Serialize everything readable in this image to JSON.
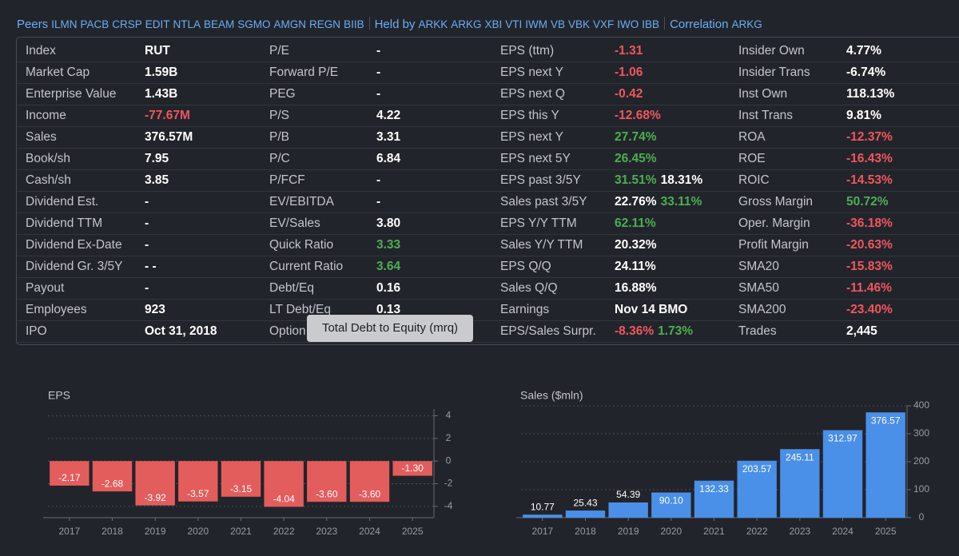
{
  "peers": {
    "label": "Peers",
    "items": [
      "ILMN",
      "PACB",
      "CRSP",
      "EDIT",
      "NTLA",
      "BEAM",
      "SGMO",
      "AMGN",
      "REGN",
      "BIIB"
    ]
  },
  "held_by": {
    "label": "Held by",
    "items": [
      "ARKK",
      "ARKG",
      "XBI",
      "VTI",
      "IWM",
      "VB",
      "VBK",
      "VXF",
      "IWO",
      "IBB"
    ]
  },
  "correlation": {
    "label": "Correlation",
    "items": [
      "ARKG"
    ]
  },
  "table": {
    "rows": [
      [
        [
          "Index",
          [
            {
              "text": "RUT",
              "color": "#ffffff"
            }
          ]
        ],
        [
          "P/E",
          [
            {
              "text": "-",
              "color": "#ffffff"
            }
          ]
        ],
        [
          "EPS (ttm)",
          [
            {
              "text": "-1.31",
              "color": "#f0575c"
            }
          ]
        ],
        [
          "Insider Own",
          [
            {
              "text": "4.77%",
              "color": "#ffffff"
            }
          ]
        ]
      ],
      [
        [
          "Market Cap",
          [
            {
              "text": "1.59B",
              "color": "#ffffff"
            }
          ]
        ],
        [
          "Forward P/E",
          [
            {
              "text": "-",
              "color": "#ffffff"
            }
          ]
        ],
        [
          "EPS next Y",
          [
            {
              "text": "-1.06",
              "color": "#f0575c"
            }
          ]
        ],
        [
          "Insider Trans",
          [
            {
              "text": "-6.74%",
              "color": "#ffffff"
            }
          ]
        ]
      ],
      [
        [
          "Enterprise Value",
          [
            {
              "text": "1.43B",
              "color": "#ffffff"
            }
          ]
        ],
        [
          "PEG",
          [
            {
              "text": "-",
              "color": "#ffffff"
            }
          ]
        ],
        [
          "EPS next Q",
          [
            {
              "text": "-0.42",
              "color": "#f0575c"
            }
          ]
        ],
        [
          "Inst Own",
          [
            {
              "text": "118.13%",
              "color": "#ffffff"
            }
          ]
        ]
      ],
      [
        [
          "Income",
          [
            {
              "text": "-77.67M",
              "color": "#f0575c"
            }
          ]
        ],
        [
          "P/S",
          [
            {
              "text": "4.22",
              "color": "#ffffff"
            }
          ]
        ],
        [
          "EPS this Y",
          [
            {
              "text": "-12.68%",
              "color": "#f0575c"
            }
          ]
        ],
        [
          "Inst Trans",
          [
            {
              "text": "9.81%",
              "color": "#ffffff"
            }
          ]
        ]
      ],
      [
        [
          "Sales",
          [
            {
              "text": "376.57M",
              "color": "#ffffff"
            }
          ]
        ],
        [
          "P/B",
          [
            {
              "text": "3.31",
              "color": "#ffffff"
            }
          ]
        ],
        [
          "EPS next Y",
          [
            {
              "text": "27.74%",
              "color": "#4caf50"
            }
          ]
        ],
        [
          "ROA",
          [
            {
              "text": "-12.37%",
              "color": "#f0575c"
            }
          ]
        ]
      ],
      [
        [
          "Book/sh",
          [
            {
              "text": "7.95",
              "color": "#ffffff"
            }
          ]
        ],
        [
          "P/C",
          [
            {
              "text": "6.84",
              "color": "#ffffff"
            }
          ]
        ],
        [
          "EPS next 5Y",
          [
            {
              "text": "26.45%",
              "color": "#4caf50"
            }
          ]
        ],
        [
          "ROE",
          [
            {
              "text": "-16.43%",
              "color": "#f0575c"
            }
          ]
        ]
      ],
      [
        [
          "Cash/sh",
          [
            {
              "text": "3.85",
              "color": "#ffffff"
            }
          ]
        ],
        [
          "P/FCF",
          [
            {
              "text": "-",
              "color": "#ffffff"
            }
          ]
        ],
        [
          "EPS past 3/5Y",
          [
            {
              "text": "31.51%",
              "color": "#4caf50"
            },
            {
              "text": "18.31%",
              "color": "#ffffff"
            }
          ]
        ],
        [
          "ROIC",
          [
            {
              "text": "-14.53%",
              "color": "#f0575c"
            }
          ]
        ]
      ],
      [
        [
          "Dividend Est.",
          [
            {
              "text": "-",
              "color": "#ffffff"
            }
          ]
        ],
        [
          "EV/EBITDA",
          [
            {
              "text": "-",
              "color": "#ffffff"
            }
          ]
        ],
        [
          "Sales past 3/5Y",
          [
            {
              "text": "22.76%",
              "color": "#ffffff"
            },
            {
              "text": "33.11%",
              "color": "#4caf50"
            }
          ]
        ],
        [
          "Gross Margin",
          [
            {
              "text": "50.72%",
              "color": "#4caf50"
            }
          ]
        ]
      ],
      [
        [
          "Dividend TTM",
          [
            {
              "text": "-",
              "color": "#ffffff"
            }
          ]
        ],
        [
          "EV/Sales",
          [
            {
              "text": "3.80",
              "color": "#ffffff"
            }
          ]
        ],
        [
          "EPS Y/Y TTM",
          [
            {
              "text": "62.11%",
              "color": "#4caf50"
            }
          ]
        ],
        [
          "Oper. Margin",
          [
            {
              "text": "-36.18%",
              "color": "#f0575c"
            }
          ]
        ]
      ],
      [
        [
          "Dividend Ex-Date",
          [
            {
              "text": "-",
              "color": "#ffffff"
            }
          ]
        ],
        [
          "Quick Ratio",
          [
            {
              "text": "3.33",
              "color": "#4caf50"
            }
          ]
        ],
        [
          "Sales Y/Y TTM",
          [
            {
              "text": "20.32%",
              "color": "#ffffff"
            }
          ]
        ],
        [
          "Profit Margin",
          [
            {
              "text": "-20.63%",
              "color": "#f0575c"
            }
          ]
        ]
      ],
      [
        [
          "Dividend Gr. 3/5Y",
          [
            {
              "text": "- -",
              "color": "#ffffff"
            }
          ]
        ],
        [
          "Current Ratio",
          [
            {
              "text": "3.64",
              "color": "#4caf50"
            }
          ]
        ],
        [
          "EPS Q/Q",
          [
            {
              "text": "24.11%",
              "color": "#ffffff"
            }
          ]
        ],
        [
          "SMA20",
          [
            {
              "text": "-15.83%",
              "color": "#f0575c"
            }
          ]
        ]
      ],
      [
        [
          "Payout",
          [
            {
              "text": "-",
              "color": "#ffffff"
            }
          ]
        ],
        [
          "Debt/Eq",
          [
            {
              "text": "0.16",
              "color": "#ffffff"
            }
          ]
        ],
        [
          "Sales Q/Q",
          [
            {
              "text": "16.88%",
              "color": "#ffffff"
            }
          ]
        ],
        [
          "SMA50",
          [
            {
              "text": "-11.46%",
              "color": "#f0575c"
            }
          ]
        ]
      ],
      [
        [
          "Employees",
          [
            {
              "text": "923",
              "color": "#ffffff"
            }
          ]
        ],
        [
          "LT Debt/Eq",
          [
            {
              "text": "0.13",
              "color": "#ffffff"
            }
          ]
        ],
        [
          "Earnings",
          [
            {
              "text": "Nov 14 BMO",
              "color": "#ffffff"
            }
          ]
        ],
        [
          "SMA200",
          [
            {
              "text": "-23.40%",
              "color": "#f0575c"
            }
          ]
        ]
      ],
      [
        [
          "IPO",
          [
            {
              "text": "Oct 31, 2018",
              "color": "#ffffff"
            }
          ]
        ],
        [
          "Option",
          []
        ],
        [
          "EPS/Sales Surpr.",
          [
            {
              "text": "-8.36%",
              "color": "#f0575c"
            },
            {
              "text": "1.73%",
              "color": "#4caf50"
            }
          ]
        ],
        [
          "Trades",
          [
            {
              "text": "2,445",
              "color": "#ffffff"
            }
          ]
        ]
      ]
    ]
  },
  "tooltip": "Total Debt to Equity (mrq)",
  "chart_data": [
    {
      "type": "bar",
      "title": "EPS",
      "color": "#e35d5d",
      "categories": [
        "2017",
        "2018",
        "2019",
        "2020",
        "2021",
        "2022",
        "2023",
        "2024",
        "2025"
      ],
      "values": [
        -2.17,
        -2.68,
        -3.92,
        -3.57,
        -3.15,
        -4.04,
        -3.6,
        -3.6,
        -1.3
      ],
      "value_labels": [
        "-2.17",
        "-2.68",
        "-3.92",
        "-3.57",
        "-3.15",
        "-4.04",
        "-3.60",
        "-3.60",
        "-1.30"
      ],
      "ylim": [
        -5,
        4.6
      ],
      "yticks": [
        -4,
        -2,
        0,
        2,
        4
      ],
      "grid": true
    },
    {
      "type": "bar",
      "title": "Sales ($mln)",
      "color": "#4a8fe8",
      "categories": [
        "2017",
        "2018",
        "2019",
        "2020",
        "2021",
        "2022",
        "2023",
        "2024",
        "2025"
      ],
      "values": [
        10.77,
        25.43,
        54.39,
        90.1,
        132.33,
        203.57,
        245.11,
        312.97,
        376.57
      ],
      "value_labels": [
        "10.77",
        "25.43",
        "54.39",
        "90.10",
        "132.33",
        "203.57",
        "245.11",
        "312.97",
        "376.57"
      ],
      "ylim": [
        0,
        400
      ],
      "yticks": [
        0,
        100,
        200,
        300,
        400
      ],
      "grid": true
    }
  ]
}
